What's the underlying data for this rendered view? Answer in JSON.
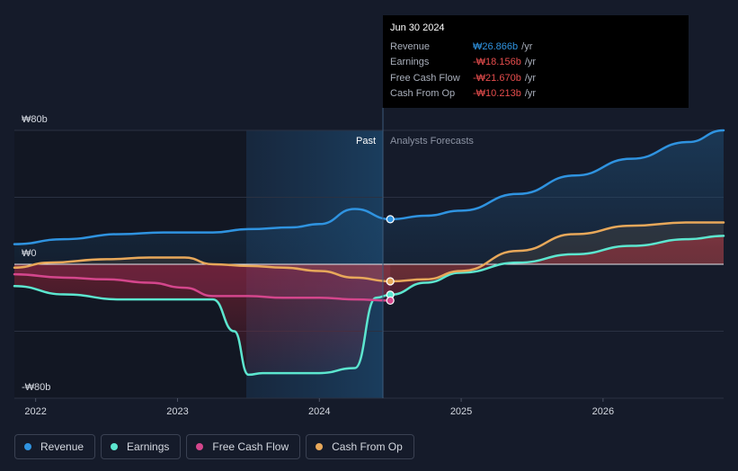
{
  "chart_data": {
    "type": "line",
    "currency_symbol": "₩",
    "y_tick_labels": [
      "₩80b",
      "₩0",
      "-₩80b"
    ],
    "ylim": [
      -80,
      80
    ],
    "x_tick_labels": [
      "2022",
      "2023",
      "2024",
      "2025",
      "2026"
    ],
    "xlim": [
      2021.85,
      2026.85
    ],
    "divider_x": 2024.5,
    "past_label": "Past",
    "forecast_label": "Analysts Forecasts",
    "series": [
      {
        "name": "Revenue",
        "color": "#2f93e0",
        "x": [
          2021.85,
          2022.2,
          2022.6,
          2022.9,
          2023.25,
          2023.5,
          2023.8,
          2024.0,
          2024.25,
          2024.5,
          2024.75,
          2025.0,
          2025.4,
          2025.8,
          2026.2,
          2026.6,
          2026.85
        ],
        "y": [
          12,
          15,
          18,
          19,
          19,
          21,
          22,
          24,
          33,
          26.9,
          29,
          32,
          42,
          53,
          63,
          73,
          80
        ]
      },
      {
        "name": "Earnings",
        "color": "#5ce6cf",
        "x": [
          2021.85,
          2022.2,
          2022.6,
          2022.9,
          2023.25,
          2023.4,
          2023.5,
          2023.6,
          2024.0,
          2024.25,
          2024.4,
          2024.5,
          2024.75,
          2025.0,
          2025.4,
          2025.8,
          2026.2,
          2026.6,
          2026.85
        ],
        "y": [
          -13,
          -18,
          -21,
          -21,
          -21,
          -40,
          -66,
          -65,
          -65,
          -62,
          -20,
          -18.2,
          -11,
          -5,
          1,
          6,
          11,
          15,
          17
        ]
      },
      {
        "name": "Free Cash Flow",
        "color": "#d4468c",
        "x": [
          2021.85,
          2022.2,
          2022.5,
          2022.8,
          2023.05,
          2023.25,
          2023.5,
          2023.75,
          2024.0,
          2024.25,
          2024.5
        ],
        "y": [
          -6,
          -8,
          -9,
          -11,
          -14,
          -19,
          -19,
          -20,
          -20,
          -21,
          -21.7
        ]
      },
      {
        "name": "Cash From Op",
        "color": "#e8a85a",
        "x": [
          2021.85,
          2022.1,
          2022.5,
          2022.8,
          2023.05,
          2023.25,
          2023.5,
          2023.75,
          2024.0,
          2024.25,
          2024.5,
          2024.75,
          2025.0,
          2025.4,
          2025.8,
          2026.2,
          2026.6,
          2026.85
        ],
        "y": [
          -2,
          1,
          3,
          4,
          4,
          0,
          -1,
          -2,
          -4,
          -8,
          -10.2,
          -9,
          -4,
          8,
          18,
          23,
          25,
          25
        ]
      }
    ],
    "grid": true,
    "legend_position": "bottom-left"
  },
  "tooltip": {
    "date": "Jun 30 2024",
    "rows": [
      {
        "label": "Revenue",
        "value": "₩26.866b",
        "unit": "/yr",
        "color": "#2f93e0"
      },
      {
        "label": "Earnings",
        "value": "-₩18.156b",
        "unit": "/yr",
        "color": "#e64d4d"
      },
      {
        "label": "Free Cash Flow",
        "value": "-₩21.670b",
        "unit": "/yr",
        "color": "#e64d4d"
      },
      {
        "label": "Cash From Op",
        "value": "-₩10.213b",
        "unit": "/yr",
        "color": "#e64d4d"
      }
    ]
  },
  "legend": [
    {
      "label": "Revenue",
      "color": "#2f93e0"
    },
    {
      "label": "Earnings",
      "color": "#5ce6cf"
    },
    {
      "label": "Free Cash Flow",
      "color": "#d4468c"
    },
    {
      "label": "Cash From Op",
      "color": "#e8a85a"
    }
  ]
}
